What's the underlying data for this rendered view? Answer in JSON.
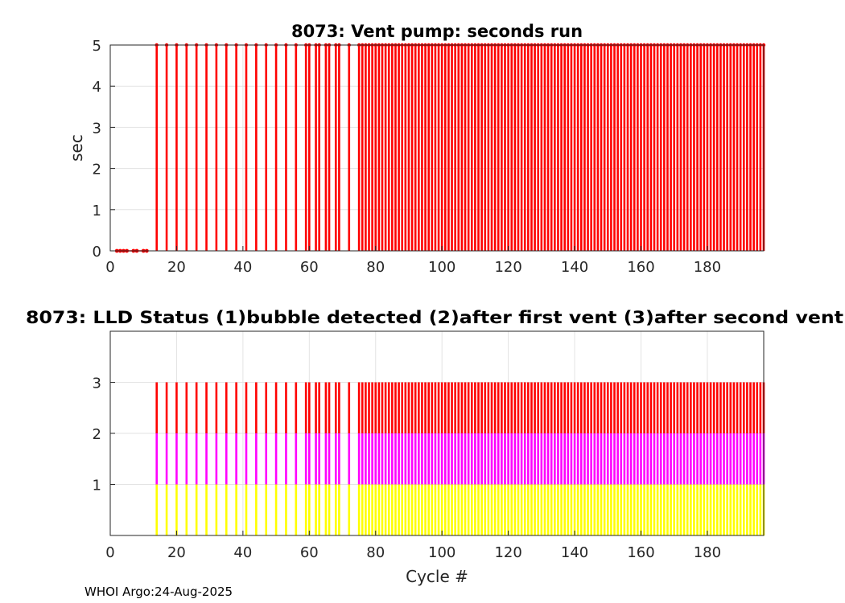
{
  "footer": "WHOI Argo:24-Aug-2025",
  "colors": {
    "red": "#ff0000",
    "magenta": "#ff00ff",
    "yellow": "#ffff00",
    "grid": "#e3e3e3"
  },
  "chart_data": [
    {
      "type": "bar",
      "title": "8073: Vent pump: seconds run",
      "xlabel": "",
      "ylabel": "sec",
      "xlim": [
        0,
        197
      ],
      "ylim": [
        0,
        5
      ],
      "xticks": [
        0,
        20,
        40,
        60,
        80,
        100,
        120,
        140,
        160,
        180
      ],
      "yticks": [
        0,
        1,
        2,
        3,
        4,
        5
      ],
      "grid": true,
      "series": [
        {
          "color": "#ff0000",
          "marker": "dot",
          "zero_cycles": [
            2,
            3,
            4,
            5,
            7,
            8,
            10,
            11
          ],
          "cycles_at_5_sparse": [
            14,
            17,
            20,
            23,
            26,
            29,
            32,
            35,
            38,
            41,
            44,
            47,
            50,
            53,
            56,
            59,
            60,
            62,
            63,
            65,
            66,
            68,
            69,
            72
          ],
          "cycles_at_5_dense_range": [
            75,
            197
          ],
          "value": 5
        }
      ]
    },
    {
      "type": "bar",
      "title": "8073: LLD Status   (1)bubble detected   (2)after first vent  (3)after second vent",
      "xlabel": "Cycle #",
      "ylabel": "",
      "xlim": [
        0,
        197
      ],
      "ylim": [
        0,
        4
      ],
      "xticks": [
        0,
        20,
        40,
        60,
        80,
        100,
        120,
        140,
        160,
        180
      ],
      "yticks": [
        1,
        2,
        3
      ],
      "grid": true,
      "stacked_levels": [
        {
          "from": 0,
          "to": 1,
          "color": "#ffff00"
        },
        {
          "from": 1,
          "to": 2,
          "color": "#ff00ff"
        },
        {
          "from": 2,
          "to": 3,
          "color": "#ff0000"
        }
      ],
      "cycles_sparse": [
        14,
        17,
        20,
        23,
        26,
        29,
        32,
        35,
        38,
        41,
        44,
        47,
        50,
        53,
        56,
        59,
        60,
        62,
        63,
        65,
        66,
        68,
        69,
        72
      ],
      "cycles_dense_range": [
        75,
        197
      ],
      "value": 3
    }
  ]
}
